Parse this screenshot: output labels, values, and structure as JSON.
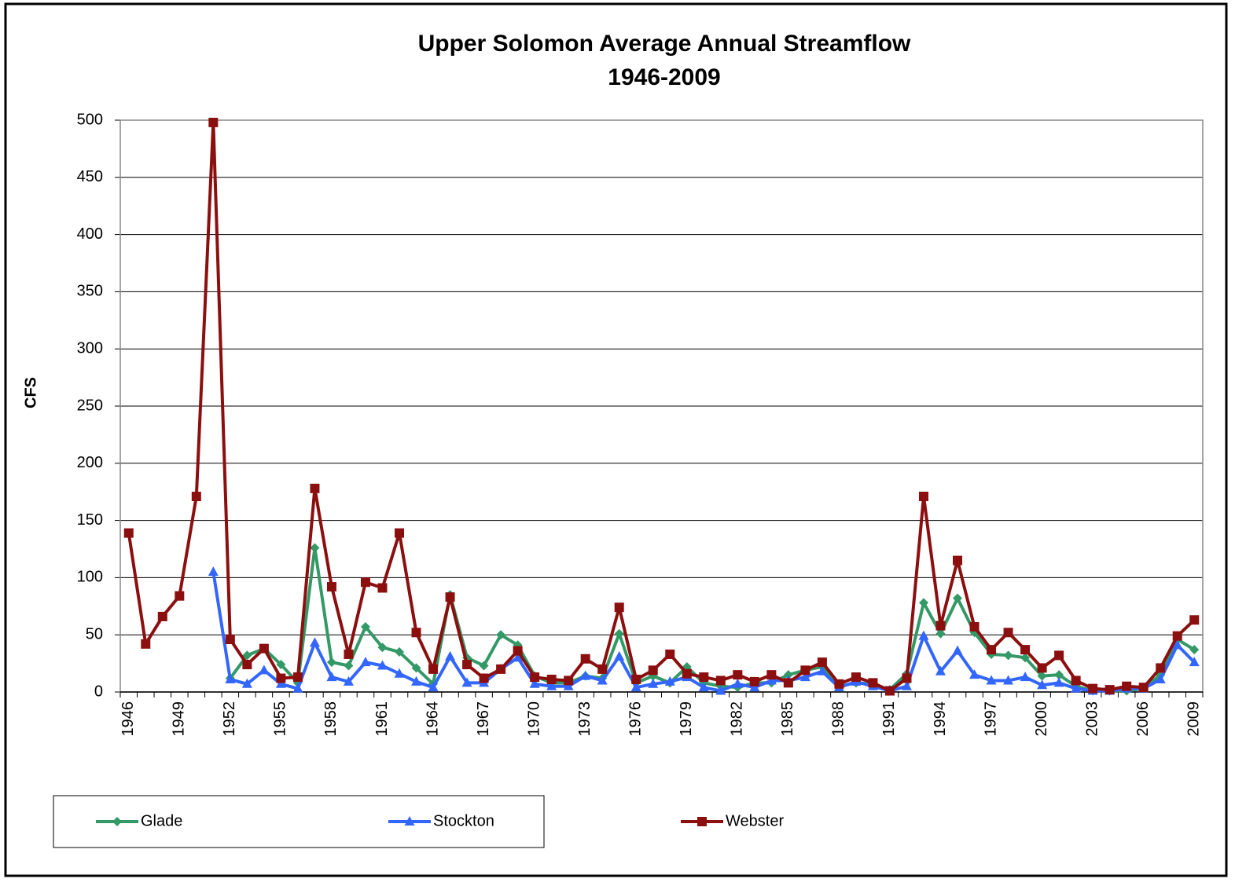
{
  "chart_data": {
    "type": "line",
    "title": "Upper Solomon Average Annual Streamflow",
    "subtitle": "1946-2009",
    "y_label": "CFS",
    "categories": [
      "1946",
      null,
      null,
      "1949",
      null,
      null,
      "1952",
      null,
      null,
      "1955",
      null,
      null,
      "1958",
      null,
      null,
      "1961",
      null,
      null,
      "1964",
      null,
      null,
      "1967",
      null,
      null,
      "1970",
      null,
      null,
      "1973",
      null,
      null,
      "1976",
      null,
      null,
      "1979",
      null,
      null,
      "1982",
      null,
      null,
      "1985",
      null,
      null,
      "1988",
      null,
      null,
      "1991",
      null,
      null,
      "1994",
      null,
      null,
      "1997",
      null,
      null,
      "2000",
      null,
      null,
      "2003",
      null,
      null,
      "2006",
      null,
      null,
      "2009"
    ],
    "series": [
      {
        "name": "Glade",
        "color": "#339966",
        "marker": "diamond",
        "values": [
          null,
          null,
          null,
          null,
          null,
          null,
          12,
          32,
          38,
          24,
          8,
          126,
          26,
          23,
          57,
          39,
          35,
          21,
          7,
          85,
          30,
          23,
          50,
          41,
          14,
          8,
          8,
          14,
          12,
          51,
          8,
          14,
          8,
          22,
          8,
          5,
          4,
          8,
          8,
          15,
          19,
          22,
          5,
          8,
          7,
          2,
          16,
          78,
          51,
          82,
          52,
          33,
          32,
          30,
          14,
          15,
          5,
          1,
          1,
          1,
          3,
          15,
          46,
          37
        ]
      },
      {
        "name": "Stockton",
        "color": "#3366ff",
        "marker": "triangle",
        "values": [
          null,
          null,
          null,
          null,
          null,
          105,
          11,
          7,
          19,
          7,
          3,
          43,
          13,
          9,
          26,
          23,
          16,
          9,
          4,
          31,
          8,
          8,
          20,
          30,
          7,
          5,
          5,
          14,
          10,
          31,
          4,
          7,
          9,
          13,
          4,
          1,
          7,
          4,
          10,
          10,
          13,
          18,
          4,
          9,
          5,
          1,
          5,
          49,
          18,
          36,
          15,
          10,
          10,
          13,
          6,
          8,
          3,
          1,
          1,
          3,
          3,
          11,
          41,
          26
        ]
      },
      {
        "name": "Webster",
        "color": "#8c0f0f",
        "marker": "square",
        "values": [
          139,
          42,
          66,
          84,
          171,
          498,
          46,
          24,
          38,
          12,
          13,
          178,
          92,
          33,
          96,
          91,
          139,
          52,
          20,
          83,
          24,
          12,
          20,
          36,
          13,
          11,
          10,
          29,
          20,
          74,
          11,
          19,
          33,
          16,
          13,
          10,
          15,
          9,
          15,
          8,
          19,
          26,
          7,
          13,
          8,
          1,
          12,
          171,
          58,
          115,
          57,
          37,
          52,
          37,
          21,
          32,
          10,
          3,
          2,
          5,
          4,
          21,
          49,
          63
        ]
      }
    ],
    "ylim": [
      0,
      500
    ],
    "yticks": [
      0,
      50,
      100,
      150,
      200,
      250,
      300,
      350,
      400,
      450,
      500
    ],
    "grid": true
  }
}
